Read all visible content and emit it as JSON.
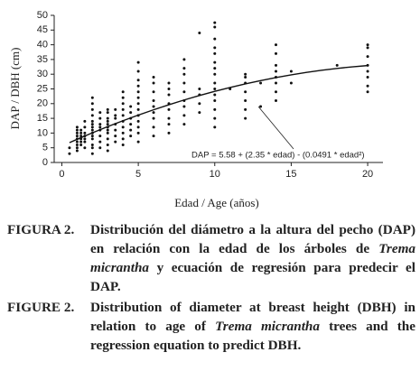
{
  "chart_data": {
    "type": "scatter",
    "ylabel": "DAP / DBH (cm)",
    "xlabel": "Edad / Age (años)",
    "annotation": "DAP = 5.58 + (2.35 * edad) - (0.0491 * edad²)",
    "xlim": [
      -0.5,
      21
    ],
    "ylim": [
      0,
      50
    ],
    "xticks": [
      0,
      5,
      10,
      15,
      20
    ],
    "yticks": [
      0,
      5,
      10,
      15,
      20,
      25,
      30,
      35,
      40,
      45,
      50
    ],
    "series": [
      {
        "color": "#111111",
        "x": [
          0.5,
          0.5,
          1,
          1,
          1,
          1,
          1,
          1,
          1,
          1,
          1,
          1.25,
          1.25,
          1.25,
          1.25,
          1.25,
          1.25,
          1.5,
          1.5,
          1.5,
          1.5,
          1.5,
          1.5,
          1.5,
          2,
          2,
          2,
          2,
          2,
          2,
          2,
          2,
          2,
          2,
          2,
          2,
          2,
          2,
          2.5,
          2.5,
          2.5,
          2.5,
          2.5,
          2.5,
          2.5,
          2.5,
          3,
          3,
          3,
          3,
          3,
          3,
          3,
          3,
          3,
          3,
          3,
          3.5,
          3.5,
          3.5,
          3.5,
          3.5,
          3.5,
          3.5,
          4,
          4,
          4,
          4,
          4,
          4,
          4,
          4,
          4,
          4,
          4.5,
          4.5,
          4.5,
          4.5,
          4.5,
          4.5,
          5,
          5,
          5,
          5,
          5,
          5,
          5,
          5,
          5,
          5,
          5,
          5,
          5,
          6,
          6,
          6,
          6,
          6,
          6,
          6,
          6,
          6,
          7,
          7,
          7,
          7,
          7,
          7,
          7,
          7,
          8,
          8,
          8,
          8,
          8,
          8,
          8,
          8,
          8,
          9,
          9,
          9,
          9,
          9,
          10,
          10,
          10,
          10,
          10,
          10,
          10,
          10,
          10,
          10,
          10,
          10,
          10,
          10,
          10,
          11,
          12,
          12,
          12,
          12,
          12,
          12,
          12,
          13,
          13,
          14,
          14,
          14,
          14,
          14,
          14,
          14,
          14,
          15,
          15,
          18,
          20,
          20,
          20,
          20,
          20,
          20,
          20,
          20
        ],
        "values": [
          3,
          5,
          4,
          5,
          6,
          7,
          8,
          9,
          10,
          11,
          12,
          6,
          7,
          8,
          9,
          10,
          11,
          5,
          7,
          8,
          9,
          10,
          12,
          14,
          3,
          5,
          6,
          8,
          9,
          10,
          11,
          12,
          13,
          14,
          16,
          18,
          20,
          22,
          5,
          7,
          9,
          11,
          12,
          13,
          15,
          17,
          4,
          6,
          8,
          10,
          11,
          12,
          13,
          14,
          15,
          17,
          18,
          7,
          9,
          11,
          13,
          15,
          16,
          18,
          6,
          8,
          10,
          12,
          14,
          16,
          18,
          20,
          22,
          24,
          9,
          11,
          13,
          15,
          17,
          19,
          7,
          10,
          12,
          14,
          16,
          18,
          20,
          22,
          24,
          26,
          28,
          31,
          34,
          9,
          12,
          15,
          17,
          19,
          21,
          24,
          27,
          29,
          10,
          13,
          15,
          18,
          20,
          23,
          25,
          27,
          13,
          16,
          19,
          21,
          24,
          27,
          30,
          32,
          35,
          17,
          20,
          23,
          25,
          44,
          12,
          15,
          18,
          21,
          23,
          25,
          27,
          30,
          32,
          34,
          37,
          39,
          42,
          46,
          47.5,
          25,
          15,
          18,
          21,
          24,
          27,
          29,
          30,
          19,
          27,
          21,
          24,
          27,
          29,
          31,
          33,
          37,
          40,
          27,
          31,
          33,
          24,
          26,
          29,
          31,
          33,
          36,
          39,
          40
        ]
      },
      {
        "type": "line",
        "color": "#111111",
        "x": [
          0.5,
          1,
          2,
          3,
          4,
          5,
          6,
          7,
          8,
          9,
          10,
          11,
          12,
          13,
          14,
          15,
          16,
          17,
          18,
          19,
          20
        ],
        "values": [
          6.74,
          7.88,
          10.08,
          12.19,
          14.19,
          16.1,
          17.91,
          19.62,
          21.24,
          22.75,
          24.17,
          25.49,
          26.71,
          27.83,
          28.86,
          29.78,
          30.61,
          31.34,
          31.97,
          32.51,
          32.94
        ]
      }
    ]
  },
  "captions": [
    {
      "label": "FIGURA 2.",
      "text_before": "Distribución del diámetro a la altura del pecho (DAP) en relación con la edad de los árboles de",
      "species": "Trema micrantha",
      "text_after": "y ecuación de regresión para predecir el DAP."
    },
    {
      "label": "FIGURE 2.",
      "text_before": "Distribution of diameter at breast height (DBH) in relation to age of",
      "species": "Trema micrantha",
      "text_after": "trees and the regression equation to predict DBH."
    }
  ]
}
